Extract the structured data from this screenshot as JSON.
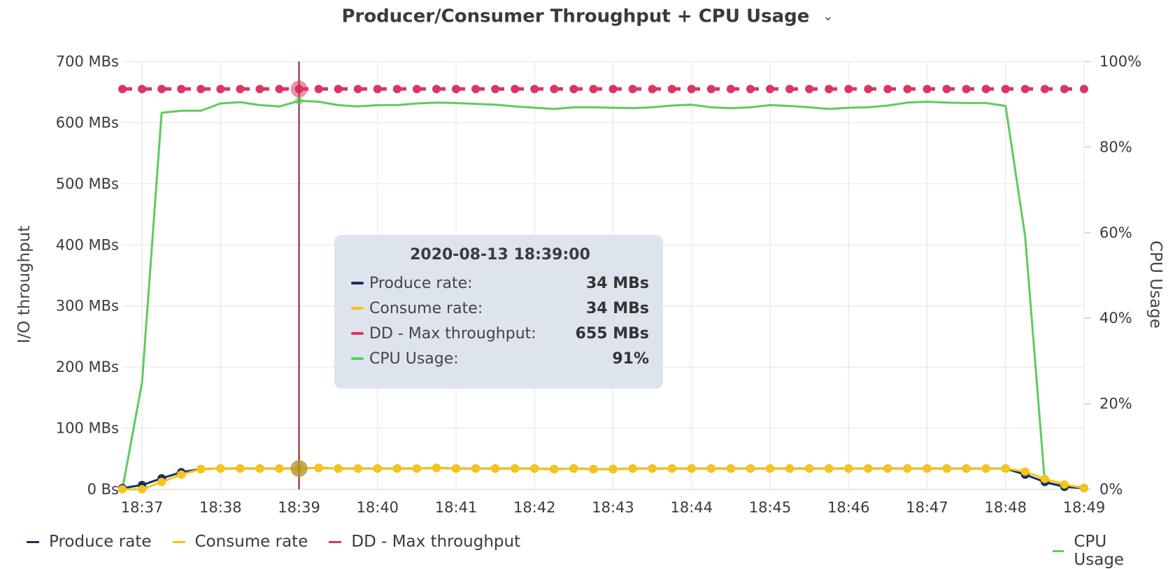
{
  "header": {
    "title": "Producer/Consumer Throughput + CPU Usage",
    "chevron_icon": "chevron-down-icon"
  },
  "chart_data": {
    "type": "line",
    "x_labels": [
      "18:37",
      "18:38",
      "18:39",
      "18:40",
      "18:41",
      "18:42",
      "18:43",
      "18:44",
      "18:45",
      "18:46",
      "18:47",
      "18:48",
      "18:49"
    ],
    "x_range": [
      36.75,
      49.0
    ],
    "y_left": {
      "label": "I/O throughput",
      "unit": "MBs",
      "range": [
        0,
        700
      ],
      "ticks": [
        "0 Bs",
        "100 MBs",
        "200 MBs",
        "300 MBs",
        "400 MBs",
        "500 MBs",
        "600 MBs",
        "700 MBs"
      ]
    },
    "y_right": {
      "label": "CPU Usage",
      "unit": "%",
      "range": [
        0,
        100
      ],
      "ticks": [
        "0%",
        "20%",
        "40%",
        "60%",
        "80%",
        "100%"
      ]
    },
    "grid": true,
    "legend_left": [
      "Produce rate",
      "Consume rate",
      "DD - Max throughput"
    ],
    "legend_right": [
      "CPU Usage"
    ],
    "colors": {
      "produce": "#1c2f5e",
      "consume": "#f5c518",
      "max": "#dc3560",
      "cpu": "#5ecb5e",
      "cursor": "#8b1a1a"
    },
    "series": [
      {
        "name": "Produce rate",
        "axis": "left",
        "color": "#1c2f5e",
        "x": [
          36.75,
          37.0,
          37.25,
          37.5,
          37.75,
          38.0,
          38.25,
          38.5,
          38.75,
          39.0,
          39.25,
          39.5,
          39.75,
          40.0,
          40.25,
          40.5,
          40.75,
          41.0,
          41.25,
          41.5,
          41.75,
          42.0,
          42.25,
          42.5,
          42.75,
          43.0,
          43.25,
          43.5,
          43.75,
          44.0,
          44.25,
          44.5,
          44.75,
          45.0,
          45.25,
          45.5,
          45.75,
          46.0,
          46.25,
          46.5,
          46.75,
          47.0,
          47.25,
          47.5,
          47.75,
          48.0,
          48.25,
          48.5,
          48.75,
          49.0
        ],
        "y": [
          2,
          7,
          18,
          28,
          33,
          34,
          34,
          34,
          34,
          34,
          35,
          34,
          34,
          34,
          34,
          34,
          35,
          34,
          34,
          34,
          34,
          34,
          33,
          34,
          33,
          33,
          34,
          34,
          34,
          34,
          34,
          34,
          34,
          34,
          34,
          34,
          34,
          34,
          34,
          34,
          34,
          34,
          34,
          34,
          34,
          34,
          24,
          12,
          4,
          2
        ]
      },
      {
        "name": "Consume rate",
        "axis": "left",
        "color": "#f5c518",
        "x": [
          36.75,
          37.0,
          37.25,
          37.5,
          37.75,
          38.0,
          38.25,
          38.5,
          38.75,
          39.0,
          39.25,
          39.5,
          39.75,
          40.0,
          40.25,
          40.5,
          40.75,
          41.0,
          41.25,
          41.5,
          41.75,
          42.0,
          42.25,
          42.5,
          42.75,
          43.0,
          43.25,
          43.5,
          43.75,
          44.0,
          44.25,
          44.5,
          44.75,
          45.0,
          45.25,
          45.5,
          45.75,
          46.0,
          46.25,
          46.5,
          46.75,
          47.0,
          47.25,
          47.5,
          47.75,
          48.0,
          48.25,
          48.5,
          48.75,
          49.0
        ],
        "y": [
          0,
          0,
          12,
          24,
          33,
          34,
          34,
          34,
          34,
          34,
          35,
          34,
          34,
          34,
          34,
          34,
          35,
          34,
          34,
          34,
          34,
          34,
          33,
          34,
          33,
          33,
          34,
          34,
          34,
          34,
          34,
          34,
          34,
          34,
          34,
          34,
          34,
          34,
          34,
          34,
          34,
          34,
          34,
          34,
          34,
          34,
          29,
          17,
          8,
          2
        ]
      },
      {
        "name": "DD - Max throughput",
        "axis": "left",
        "color": "#dc3560",
        "dashed": true,
        "x": [
          36.75,
          37.0,
          37.25,
          37.5,
          37.75,
          38.0,
          38.25,
          38.5,
          38.75,
          39.0,
          39.25,
          39.5,
          39.75,
          40.0,
          40.25,
          40.5,
          40.75,
          41.0,
          41.25,
          41.5,
          41.75,
          42.0,
          42.25,
          42.5,
          42.75,
          43.0,
          43.25,
          43.5,
          43.75,
          44.0,
          44.25,
          44.5,
          44.75,
          45.0,
          45.25,
          45.5,
          45.75,
          46.0,
          46.25,
          46.5,
          46.75,
          47.0,
          47.25,
          47.5,
          47.75,
          48.0,
          48.25,
          48.5,
          48.75,
          49.0
        ],
        "y": [
          655,
          655,
          655,
          655,
          655,
          655,
          655,
          655,
          655,
          655,
          655,
          655,
          655,
          655,
          655,
          655,
          655,
          655,
          655,
          655,
          655,
          655,
          655,
          655,
          655,
          655,
          655,
          655,
          655,
          655,
          655,
          655,
          655,
          655,
          655,
          655,
          655,
          655,
          655,
          655,
          655,
          655,
          655,
          655,
          655,
          655,
          655,
          655,
          655,
          655
        ]
      },
      {
        "name": "CPU Usage",
        "axis": "right",
        "color": "#5ecb5e",
        "x": [
          36.75,
          37.0,
          37.25,
          37.5,
          37.75,
          38.0,
          38.25,
          38.5,
          38.75,
          39.0,
          39.25,
          39.5,
          39.75,
          40.0,
          40.25,
          40.5,
          40.75,
          41.0,
          41.25,
          41.5,
          41.75,
          42.0,
          42.25,
          42.5,
          42.75,
          43.0,
          43.25,
          43.5,
          43.75,
          44.0,
          44.25,
          44.5,
          44.75,
          45.0,
          45.25,
          45.5,
          45.75,
          46.0,
          46.25,
          46.5,
          46.75,
          47.0,
          47.25,
          47.5,
          47.75,
          48.0,
          48.25,
          48.5,
          48.75,
          49.0
        ],
        "y": [
          0,
          25,
          88,
          88.5,
          88.5,
          90.2,
          90.5,
          89.8,
          89.5,
          90.8,
          90.6,
          89.8,
          89.5,
          89.8,
          89.8,
          90.2,
          90.4,
          90.3,
          90.1,
          89.9,
          89.5,
          89.2,
          88.9,
          89.3,
          89.3,
          89.2,
          89.1,
          89.3,
          89.7,
          89.9,
          89.3,
          89.1,
          89.3,
          89.8,
          89.6,
          89.3,
          88.9,
          89.2,
          89.3,
          89.7,
          90.4,
          90.6,
          90.4,
          90.3,
          90.3,
          89.6,
          59,
          1.5,
          0.8,
          0.5
        ]
      }
    ],
    "cursor_x": 39.0,
    "tooltip": {
      "time": "2020-08-13 18:39:00",
      "rows": [
        {
          "label": "Produce rate:",
          "value": "34 MBs",
          "color": "#1c2f5e"
        },
        {
          "label": "Consume rate:",
          "value": "34 MBs",
          "color": "#f5c518"
        },
        {
          "label": "DD - Max throughput:",
          "value": "655 MBs",
          "color": "#dc3560"
        },
        {
          "label": "CPU Usage:",
          "value": "91%",
          "color": "#5ecb5e"
        }
      ]
    }
  }
}
